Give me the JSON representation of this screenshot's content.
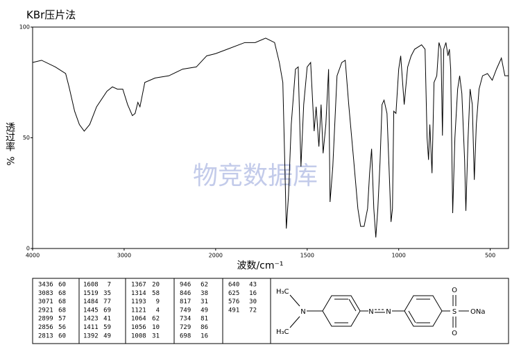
{
  "chart_data": {
    "type": "line",
    "title": "KBr压片法",
    "x_label": "波数/cm⁻¹",
    "y_label": "透过率",
    "y_unit": "%",
    "watermark": "物竞数据库",
    "xlim": [
      4000,
      400
    ],
    "xbreak": 2000,
    "xticks": [
      4000,
      3000,
      2000,
      1500,
      1000,
      500
    ],
    "ylim": [
      0,
      100
    ],
    "yticks": [
      0,
      50,
      100
    ],
    "x": [
      4000,
      3902,
      3752,
      3639,
      3602,
      3541,
      3489,
      3436,
      3376,
      3301,
      3188,
      3128,
      3075,
      3015,
      2962,
      2910,
      2880,
      2850,
      2827,
      2774,
      2662,
      2511,
      2361,
      2211,
      2098,
      2000,
      1936,
      1841,
      1784,
      1727,
      1678,
      1652,
      1633,
      1621,
      1614,
      1602,
      1587,
      1564,
      1549,
      1534,
      1519,
      1500,
      1481,
      1462,
      1451,
      1436,
      1424,
      1413,
      1398,
      1383,
      1375,
      1360,
      1337,
      1311,
      1292,
      1273,
      1246,
      1223,
      1208,
      1189,
      1170,
      1159,
      1148,
      1136,
      1125,
      1114,
      1102,
      1091,
      1080,
      1064,
      1053,
      1042,
      1034,
      1027,
      1015,
      1000,
      989,
      970,
      951,
      932,
      913,
      875,
      856,
      845,
      837,
      830,
      818,
      807,
      792,
      780,
      769,
      761,
      754,
      742,
      731,
      723,
      716,
      705,
      693,
      678,
      667,
      655,
      640,
      633,
      621,
      610,
      598,
      587,
      576,
      561,
      542,
      515,
      489,
      466,
      439,
      420,
      400
    ],
    "series": [
      {
        "name": "spectrum",
        "color": "#000000",
        "values": [
          84,
          85,
          82,
          79,
          73,
          62,
          56,
          53,
          56,
          64,
          71,
          73,
          72,
          72,
          65,
          60,
          61,
          66,
          64,
          75,
          77,
          78,
          81,
          82,
          87,
          88,
          90,
          93,
          93,
          95,
          93,
          84,
          75,
          34,
          9,
          24,
          56,
          81,
          82,
          37,
          65,
          82,
          84,
          53,
          64,
          46,
          65,
          43,
          56,
          81,
          21,
          37,
          78,
          84,
          85,
          65,
          40,
          18,
          10,
          10,
          18,
          34,
          45,
          18,
          5,
          18,
          39,
          65,
          67,
          61,
          37,
          12,
          18,
          62,
          61,
          81,
          87,
          65,
          82,
          87,
          90,
          92,
          90,
          50,
          40,
          56,
          34,
          75,
          78,
          93,
          90,
          51,
          90,
          93,
          87,
          90,
          81,
          16,
          50,
          72,
          78,
          70,
          40,
          17,
          50,
          72,
          65,
          31,
          56,
          72,
          78,
          79,
          76,
          81,
          86,
          78,
          78
        ]
      }
    ]
  },
  "table": {
    "columns": [
      [
        [
          "3436",
          "60"
        ],
        [
          "3083",
          "68"
        ],
        [
          "3071",
          "68"
        ],
        [
          "2921",
          "68"
        ],
        [
          "2899",
          "57"
        ],
        [
          "2856",
          "56"
        ],
        [
          "2813",
          "60"
        ]
      ],
      [
        [
          "1608",
          "7"
        ],
        [
          "1519",
          "35"
        ],
        [
          "1484",
          "77"
        ],
        [
          "1445",
          "69"
        ],
        [
          "1423",
          "41"
        ],
        [
          "1411",
          "59"
        ],
        [
          "1392",
          "49"
        ]
      ],
      [
        [
          "1367",
          "20"
        ],
        [
          "1314",
          "58"
        ],
        [
          "1193",
          "9"
        ],
        [
          "1121",
          "4"
        ],
        [
          "1064",
          "62"
        ],
        [
          "1056",
          "10"
        ],
        [
          "1008",
          "31"
        ]
      ],
      [
        [
          "946",
          "62"
        ],
        [
          "846",
          "38"
        ],
        [
          "817",
          "31"
        ],
        [
          "749",
          "49"
        ],
        [
          "734",
          "81"
        ],
        [
          "729",
          "86"
        ],
        [
          "698",
          "16"
        ]
      ],
      [
        [
          "640",
          "43"
        ],
        [
          "625",
          "16"
        ],
        [
          "576",
          "30"
        ],
        [
          "491",
          "72"
        ]
      ]
    ]
  },
  "structure": {
    "methyl_top": "H₃C",
    "methyl_bottom": "H₃C",
    "amine": "N",
    "azo_1": "N",
    "azo_2": "N",
    "sulfur": "S",
    "oxygen_top": "O",
    "oxygen_bottom": "O",
    "sodium_salt": "ONa"
  }
}
